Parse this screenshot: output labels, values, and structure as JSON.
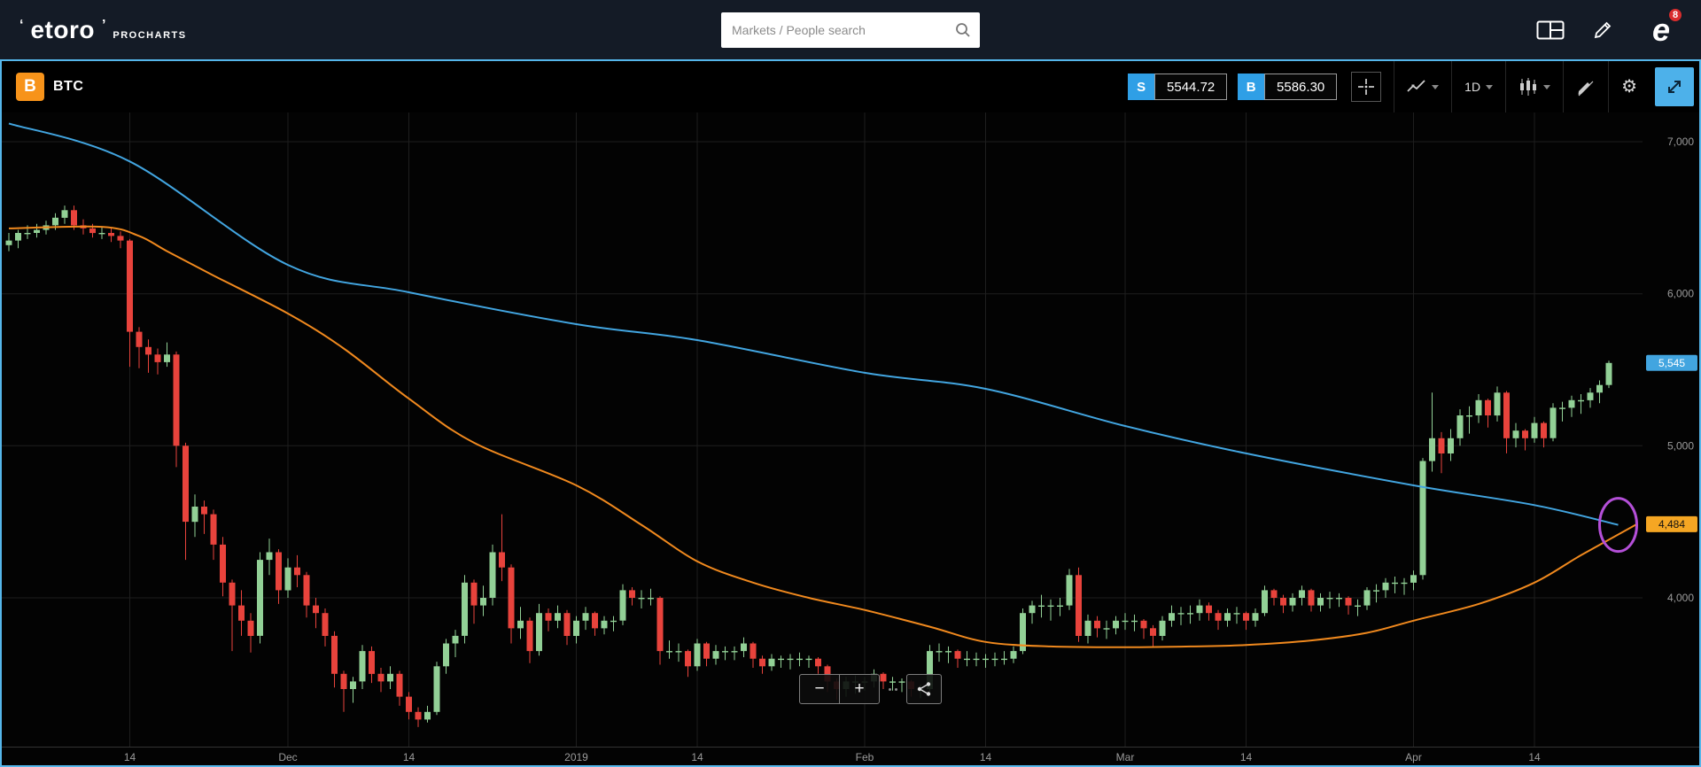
{
  "header": {
    "logo": "etoro",
    "logo_mark_left": "‘",
    "logo_mark_right": "’",
    "logo_sub": "PROCHARTS",
    "search_placeholder": "Markets / People search",
    "avatar_glyph": "e",
    "notification_count": "8"
  },
  "toolbar": {
    "symbol": "BTC",
    "btc_glyph": "B",
    "sell_label": "S",
    "sell_price": "5544.72",
    "buy_label": "B",
    "buy_price": "5586.30",
    "interval": "1D"
  },
  "zoom": {
    "minus": "−",
    "plus": "+"
  },
  "colors": {
    "up": "#92d096",
    "down": "#e8433c",
    "ma_fast_orange": "#f0891e",
    "ma_slow_blue": "#42a5e0",
    "accent_blue": "#2f9fe6",
    "tag_orange": "#f5a623",
    "annotation_purple": "#b44fd8",
    "grid": "#1e1e1e",
    "axis_text": "#9b9b9b",
    "panel_border": "#55b6ea"
  },
  "chart_data": {
    "type": "candlestick",
    "symbol": "BTC",
    "interval": "1D",
    "start_date": "2018-11-01",
    "ylim": [
      3100,
      7200
    ],
    "grid": true,
    "price_tag_blue": "5,545",
    "price_tag_orange": "4,484",
    "annotation_ellipse": {
      "day": 173,
      "price": 4480
    },
    "y_ticks": [
      {
        "label": "7,000",
        "value": 7000
      },
      {
        "label": "6,000",
        "value": 6000
      },
      {
        "label": "5,000",
        "value": 5000
      },
      {
        "label": "4,000",
        "value": 4000
      }
    ],
    "x_ticks": [
      {
        "label": "14",
        "day": 13
      },
      {
        "label": "Dec",
        "day": 30
      },
      {
        "label": "14",
        "day": 43
      },
      {
        "label": "2019",
        "day": 61
      },
      {
        "label": "14",
        "day": 74
      },
      {
        "label": "Feb",
        "day": 92
      },
      {
        "label": "14",
        "day": 105
      },
      {
        "label": "Mar",
        "day": 120
      },
      {
        "label": "14",
        "day": 133
      },
      {
        "label": "Apr",
        "day": 151
      },
      {
        "label": "14",
        "day": 164
      }
    ],
    "ma_slow_blue": [
      [
        0,
        7120
      ],
      [
        13,
        6870
      ],
      [
        30,
        6190
      ],
      [
        43,
        6010
      ],
      [
        61,
        5800
      ],
      [
        74,
        5695
      ],
      [
        92,
        5480
      ],
      [
        105,
        5375
      ],
      [
        120,
        5130
      ],
      [
        133,
        4950
      ],
      [
        151,
        4740
      ],
      [
        164,
        4610
      ],
      [
        173,
        4480
      ]
    ],
    "ma_fast_orange": [
      [
        0,
        6430
      ],
      [
        10,
        6440
      ],
      [
        14,
        6380
      ],
      [
        17,
        6280
      ],
      [
        22,
        6120
      ],
      [
        30,
        5870
      ],
      [
        36,
        5640
      ],
      [
        43,
        5310
      ],
      [
        50,
        5020
      ],
      [
        61,
        4740
      ],
      [
        68,
        4480
      ],
      [
        74,
        4240
      ],
      [
        80,
        4100
      ],
      [
        86,
        4000
      ],
      [
        92,
        3920
      ],
      [
        99,
        3810
      ],
      [
        105,
        3710
      ],
      [
        112,
        3680
      ],
      [
        120,
        3675
      ],
      [
        127,
        3680
      ],
      [
        133,
        3690
      ],
      [
        140,
        3720
      ],
      [
        146,
        3770
      ],
      [
        151,
        3850
      ],
      [
        158,
        3960
      ],
      [
        164,
        4100
      ],
      [
        169,
        4280
      ],
      [
        175,
        4484
      ]
    ],
    "candles": [
      [
        6320,
        6400,
        6280,
        6350
      ],
      [
        6350,
        6420,
        6300,
        6400
      ],
      [
        6400,
        6450,
        6360,
        6400
      ],
      [
        6400,
        6460,
        6370,
        6420
      ],
      [
        6420,
        6480,
        6390,
        6450
      ],
      [
        6450,
        6530,
        6420,
        6500
      ],
      [
        6500,
        6580,
        6460,
        6550
      ],
      [
        6550,
        6580,
        6420,
        6450
      ],
      [
        6450,
        6490,
        6390,
        6430
      ],
      [
        6430,
        6460,
        6370,
        6400
      ],
      [
        6400,
        6440,
        6360,
        6400
      ],
      [
        6400,
        6430,
        6340,
        6380
      ],
      [
        6380,
        6410,
        6300,
        6350
      ],
      [
        6350,
        6360,
        5520,
        5750
      ],
      [
        5750,
        5780,
        5510,
        5650
      ],
      [
        5650,
        5700,
        5480,
        5600
      ],
      [
        5600,
        5640,
        5470,
        5550
      ],
      [
        5550,
        5680,
        5520,
        5600
      ],
      [
        5600,
        5620,
        4860,
        5000
      ],
      [
        5000,
        5020,
        4250,
        4500
      ],
      [
        4500,
        4680,
        4400,
        4600
      ],
      [
        4600,
        4640,
        4420,
        4550
      ],
      [
        4550,
        4580,
        4250,
        4350
      ],
      [
        4350,
        4400,
        4010,
        4100
      ],
      [
        4100,
        4120,
        3650,
        3950
      ],
      [
        3950,
        4050,
        3750,
        3850
      ],
      [
        3850,
        3900,
        3640,
        3750
      ],
      [
        3750,
        4300,
        3700,
        4250
      ],
      [
        4250,
        4390,
        4150,
        4300
      ],
      [
        4300,
        4320,
        3960,
        4050
      ],
      [
        4050,
        4260,
        4000,
        4200
      ],
      [
        4200,
        4280,
        4070,
        4150
      ],
      [
        4150,
        4170,
        3870,
        3950
      ],
      [
        3950,
        4000,
        3800,
        3900
      ],
      [
        3900,
        3930,
        3680,
        3750
      ],
      [
        3750,
        3780,
        3410,
        3500
      ],
      [
        3500,
        3520,
        3250,
        3400
      ],
      [
        3400,
        3480,
        3310,
        3450
      ],
      [
        3450,
        3690,
        3400,
        3650
      ],
      [
        3650,
        3680,
        3440,
        3500
      ],
      [
        3500,
        3540,
        3380,
        3450
      ],
      [
        3450,
        3550,
        3400,
        3500
      ],
      [
        3500,
        3520,
        3290,
        3350
      ],
      [
        3350,
        3380,
        3200,
        3250
      ],
      [
        3250,
        3280,
        3150,
        3200
      ],
      [
        3200,
        3290,
        3180,
        3250
      ],
      [
        3250,
        3580,
        3230,
        3550
      ],
      [
        3550,
        3730,
        3500,
        3700
      ],
      [
        3700,
        3790,
        3610,
        3750
      ],
      [
        3750,
        4150,
        3700,
        4100
      ],
      [
        4100,
        4120,
        3830,
        3950
      ],
      [
        3950,
        4080,
        3880,
        4000
      ],
      [
        4000,
        4350,
        3950,
        4300
      ],
      [
        4300,
        4550,
        4110,
        4200
      ],
      [
        4200,
        4220,
        3700,
        3800
      ],
      [
        3800,
        3940,
        3730,
        3850
      ],
      [
        3850,
        3870,
        3570,
        3650
      ],
      [
        3650,
        3960,
        3620,
        3900
      ],
      [
        3900,
        3930,
        3780,
        3850
      ],
      [
        3850,
        3950,
        3800,
        3900
      ],
      [
        3900,
        3920,
        3690,
        3750
      ],
      [
        3750,
        3880,
        3700,
        3850
      ],
      [
        3850,
        3940,
        3790,
        3900
      ],
      [
        3900,
        3910,
        3750,
        3800
      ],
      [
        3800,
        3880,
        3760,
        3850
      ],
      [
        3850,
        3880,
        3780,
        3850
      ],
      [
        3850,
        4090,
        3820,
        4050
      ],
      [
        4050,
        4070,
        3950,
        4000
      ],
      [
        4000,
        4050,
        3930,
        4000
      ],
      [
        4000,
        4060,
        3950,
        4000
      ],
      [
        4000,
        4010,
        3560,
        3650
      ],
      [
        3650,
        3720,
        3600,
        3650
      ],
      [
        3650,
        3700,
        3580,
        3650
      ],
      [
        3650,
        3660,
        3480,
        3550
      ],
      [
        3550,
        3730,
        3520,
        3700
      ],
      [
        3700,
        3710,
        3550,
        3600
      ],
      [
        3600,
        3690,
        3560,
        3650
      ],
      [
        3650,
        3680,
        3590,
        3650
      ],
      [
        3650,
        3680,
        3590,
        3650
      ],
      [
        3650,
        3740,
        3610,
        3700
      ],
      [
        3700,
        3710,
        3540,
        3600
      ],
      [
        3600,
        3620,
        3500,
        3550
      ],
      [
        3550,
        3630,
        3520,
        3600
      ],
      [
        3600,
        3620,
        3540,
        3600
      ],
      [
        3600,
        3630,
        3530,
        3600
      ],
      [
        3600,
        3640,
        3550,
        3600
      ],
      [
        3600,
        3620,
        3540,
        3600
      ],
      [
        3600,
        3610,
        3500,
        3550
      ],
      [
        3550,
        3560,
        3380,
        3450
      ],
      [
        3450,
        3470,
        3330,
        3400
      ],
      [
        3400,
        3480,
        3350,
        3450
      ],
      [
        3450,
        3490,
        3370,
        3450
      ],
      [
        3450,
        3480,
        3390,
        3450
      ],
      [
        3450,
        3530,
        3410,
        3500
      ],
      [
        3500,
        3510,
        3400,
        3450
      ],
      [
        3450,
        3480,
        3390,
        3450
      ],
      [
        3450,
        3470,
        3380,
        3450
      ],
      [
        3450,
        3460,
        3350,
        3400
      ],
      [
        3400,
        3430,
        3340,
        3400
      ],
      [
        3400,
        3690,
        3380,
        3650
      ],
      [
        3650,
        3700,
        3580,
        3650
      ],
      [
        3650,
        3680,
        3570,
        3650
      ],
      [
        3650,
        3660,
        3540,
        3600
      ],
      [
        3600,
        3650,
        3550,
        3600
      ],
      [
        3600,
        3640,
        3550,
        3600
      ],
      [
        3600,
        3630,
        3540,
        3600
      ],
      [
        3600,
        3640,
        3550,
        3600
      ],
      [
        3600,
        3650,
        3560,
        3600
      ],
      [
        3600,
        3680,
        3570,
        3650
      ],
      [
        3650,
        3930,
        3630,
        3900
      ],
      [
        3900,
        3980,
        3830,
        3950
      ],
      [
        3950,
        4020,
        3870,
        3950
      ],
      [
        3950,
        3990,
        3850,
        3950
      ],
      [
        3950,
        4000,
        3880,
        3950
      ],
      [
        3950,
        4190,
        3920,
        4150
      ],
      [
        4150,
        4200,
        3710,
        3750
      ],
      [
        3750,
        3890,
        3700,
        3850
      ],
      [
        3850,
        3880,
        3740,
        3800
      ],
      [
        3800,
        3850,
        3730,
        3800
      ],
      [
        3800,
        3880,
        3760,
        3850
      ],
      [
        3850,
        3900,
        3790,
        3850
      ],
      [
        3850,
        3890,
        3780,
        3850
      ],
      [
        3850,
        3860,
        3730,
        3800
      ],
      [
        3800,
        3820,
        3680,
        3750
      ],
      [
        3750,
        3880,
        3720,
        3850
      ],
      [
        3850,
        3950,
        3810,
        3900
      ],
      [
        3900,
        3940,
        3820,
        3900
      ],
      [
        3900,
        3950,
        3830,
        3900
      ],
      [
        3900,
        3990,
        3850,
        3950
      ],
      [
        3950,
        3970,
        3850,
        3900
      ],
      [
        3900,
        3920,
        3790,
        3850
      ],
      [
        3850,
        3930,
        3810,
        3900
      ],
      [
        3900,
        3940,
        3830,
        3900
      ],
      [
        3900,
        3910,
        3790,
        3850
      ],
      [
        3850,
        3930,
        3810,
        3900
      ],
      [
        3900,
        4080,
        3880,
        4050
      ],
      [
        4050,
        4060,
        3950,
        4000
      ],
      [
        4000,
        4020,
        3900,
        3950
      ],
      [
        3950,
        4030,
        3910,
        4000
      ],
      [
        4000,
        4080,
        3950,
        4050
      ],
      [
        4050,
        4060,
        3910,
        3950
      ],
      [
        3950,
        4030,
        3910,
        4000
      ],
      [
        4000,
        4040,
        3930,
        4000
      ],
      [
        4000,
        4030,
        3940,
        4000
      ],
      [
        4000,
        4010,
        3890,
        3950
      ],
      [
        3950,
        3990,
        3880,
        3950
      ],
      [
        3950,
        4070,
        3920,
        4050
      ],
      [
        4050,
        4090,
        3970,
        4050
      ],
      [
        4050,
        4130,
        4000,
        4100
      ],
      [
        4100,
        4140,
        4030,
        4100
      ],
      [
        4100,
        4130,
        4020,
        4100
      ],
      [
        4100,
        4180,
        4050,
        4150
      ],
      [
        4150,
        4920,
        4120,
        4900
      ],
      [
        4900,
        5350,
        4830,
        5050
      ],
      [
        5050,
        5090,
        4820,
        4950
      ],
      [
        4950,
        5110,
        4900,
        5050
      ],
      [
        5050,
        5240,
        5000,
        5200
      ],
      [
        5200,
        5260,
        5080,
        5200
      ],
      [
        5200,
        5340,
        5150,
        5300
      ],
      [
        5300,
        5310,
        5120,
        5200
      ],
      [
        5200,
        5390,
        5160,
        5350
      ],
      [
        5350,
        5360,
        4950,
        5050
      ],
      [
        5050,
        5150,
        4990,
        5100
      ],
      [
        5100,
        5110,
        4970,
        5050
      ],
      [
        5050,
        5190,
        5020,
        5150
      ],
      [
        5150,
        5160,
        4990,
        5050
      ],
      [
        5050,
        5280,
        5030,
        5250
      ],
      [
        5250,
        5290,
        5160,
        5250
      ],
      [
        5250,
        5330,
        5190,
        5300
      ],
      [
        5300,
        5340,
        5210,
        5300
      ],
      [
        5300,
        5380,
        5250,
        5350
      ],
      [
        5350,
        5430,
        5280,
        5400
      ],
      [
        5400,
        5560,
        5380,
        5545
      ]
    ]
  }
}
